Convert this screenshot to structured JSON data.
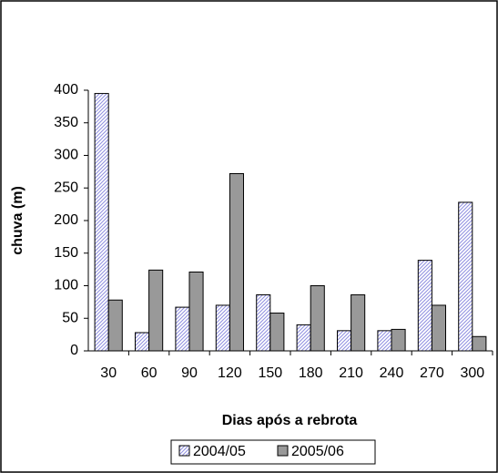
{
  "chart_data": {
    "type": "bar",
    "x_label": "Dias após a rebrota",
    "y_label": "chuva (m)",
    "categories": [
      "30",
      "60",
      "90",
      "120",
      "150",
      "180",
      "210",
      "240",
      "270",
      "300"
    ],
    "series": [
      {
        "name": "2004/05",
        "color": "#8f8fe0",
        "pattern": "hatch",
        "values": [
          395,
          28,
          67,
          70,
          86,
          40,
          31,
          31,
          139,
          228
        ]
      },
      {
        "name": "2005/06",
        "color": "#999999",
        "values": [
          78,
          124,
          121,
          272,
          58,
          100,
          86,
          33,
          70,
          22
        ]
      }
    ],
    "ylim": [
      0,
      400
    ],
    "yticks": [
      0,
      50,
      100,
      150,
      200,
      250,
      300,
      350,
      400
    ],
    "grid": false,
    "legend": "bottom"
  }
}
